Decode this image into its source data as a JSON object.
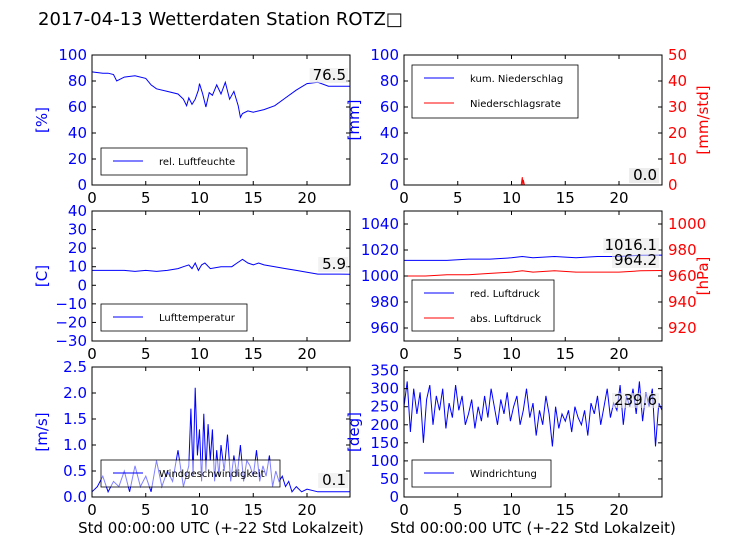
{
  "title": "2017-04-13 Wetterdaten Station ROTZ□",
  "colors": {
    "primary": "#0000ff",
    "secondary": "#ff0000",
    "light": "#8080ff",
    "axis": "#000000"
  },
  "chart_data": [
    {
      "type": "line",
      "id": "humidity",
      "ylabel": "[%]",
      "xlabel": "",
      "xlim": [
        0,
        24
      ],
      "ylim": [
        0,
        100
      ],
      "xticks": [
        "0",
        "5",
        "10",
        "15",
        "20"
      ],
      "yticks": [
        "0",
        "20",
        "40",
        "60",
        "80",
        "100"
      ],
      "legend": [
        "rel. Luftfeuchte"
      ],
      "legend_position": "lower-left",
      "annotations": [
        "76.5"
      ],
      "series": [
        {
          "name": "rel. Luftfeuchte",
          "color": "#0000ff",
          "x": [
            0,
            1,
            1.5,
            2,
            2.3,
            3,
            4,
            5,
            5.5,
            6,
            7,
            8,
            8.5,
            8.8,
            9,
            9.3,
            9.6,
            9.9,
            10,
            10.3,
            10.6,
            10.9,
            11.2,
            11.6,
            12,
            12.4,
            12.8,
            13.2,
            13.6,
            13.8,
            14,
            14.5,
            15,
            16,
            17,
            18,
            19,
            20,
            21,
            22,
            23,
            24
          ],
          "y": [
            87,
            86,
            86,
            85,
            80,
            83,
            84,
            82,
            77,
            74,
            72,
            70,
            66,
            61,
            67,
            62,
            66,
            73,
            78,
            70,
            60,
            71,
            69,
            77,
            70,
            79,
            66,
            72,
            61,
            52,
            55,
            57,
            56,
            58,
            61,
            67,
            73,
            78,
            79,
            76,
            76,
            76
          ]
        }
      ]
    },
    {
      "type": "line",
      "id": "precipitation",
      "ylabel": "[mm]",
      "ylabel2": "[mm/std]",
      "xlabel": "",
      "xlim": [
        0,
        24
      ],
      "ylim": [
        0,
        100
      ],
      "ylim2": [
        0,
        50
      ],
      "xticks": [
        "0",
        "5",
        "10",
        "15",
        "20"
      ],
      "yticks": [
        "0",
        "20",
        "40",
        "60",
        "80",
        "100"
      ],
      "yticks2": [
        "0",
        "10",
        "20",
        "30",
        "40",
        "50"
      ],
      "legend": [
        "kum. Niederschlag",
        "Niederschlagsrate"
      ],
      "legend_position": "upper-left",
      "annotations": [
        "0.0",
        "0.0"
      ],
      "series": [
        {
          "name": "kum. Niederschlag",
          "color": "#0000ff",
          "x": [
            0,
            24
          ],
          "y": [
            0,
            0
          ]
        },
        {
          "name": "Niederschlagsrate",
          "color": "#ff0000",
          "axis": "right",
          "x": [
            0,
            10.9,
            11.0,
            11.05,
            11.1,
            11.2,
            24
          ],
          "y": [
            0,
            0,
            3,
            0,
            2,
            0,
            0
          ]
        }
      ]
    },
    {
      "type": "line",
      "id": "temperature",
      "ylabel": "[C]",
      "xlabel": "",
      "xlim": [
        0,
        24
      ],
      "ylim": [
        -30,
        40
      ],
      "xticks": [
        "0",
        "5",
        "10",
        "15",
        "20"
      ],
      "yticks": [
        "−30",
        "−20",
        "−10",
        "0",
        "10",
        "20",
        "30",
        "40"
      ],
      "legend": [
        "Lufttemperatur"
      ],
      "legend_position": "lower-left",
      "annotations": [
        "5.9"
      ],
      "series": [
        {
          "name": "Lufttemperatur",
          "color": "#0000ff",
          "x": [
            0,
            1,
            2,
            3,
            4,
            5,
            6,
            7,
            8,
            8.5,
            9,
            9.3,
            9.6,
            9.9,
            10.2,
            10.5,
            11,
            12,
            13,
            13.5,
            14,
            14.5,
            15,
            15.5,
            16,
            17,
            18,
            19,
            20,
            21,
            22,
            23,
            24
          ],
          "y": [
            8,
            8,
            8,
            8,
            7.5,
            8,
            7.5,
            8,
            9,
            10,
            11,
            9,
            12,
            8,
            11,
            12,
            9,
            10,
            10,
            12,
            14,
            12,
            11,
            12,
            11,
            10,
            9,
            8,
            7,
            6,
            6,
            6,
            5.9
          ]
        }
      ]
    },
    {
      "type": "line",
      "id": "pressure",
      "ylabel": "",
      "ylabel2": "[hPa]",
      "xlabel": "",
      "xlim": [
        0,
        24
      ],
      "ylim": [
        950,
        1050
      ],
      "ylim2": [
        910,
        1010
      ],
      "xticks": [
        "0",
        "5",
        "10",
        "15",
        "20"
      ],
      "yticks": [
        "960",
        "980",
        "1000",
        "1020",
        "1040"
      ],
      "yticks2": [
        "920",
        "940",
        "960",
        "980",
        "1000"
      ],
      "legend": [
        "red. Luftdruck",
        "abs. Luftdruck"
      ],
      "legend_position": "lower-left",
      "annotations": [
        "1016.1",
        "964.2"
      ],
      "series": [
        {
          "name": "red. Luftdruck",
          "color": "#0000ff",
          "x": [
            0,
            2,
            4,
            6,
            8,
            10,
            11,
            12,
            14,
            16,
            18,
            20,
            22,
            24
          ],
          "y": [
            1012,
            1012,
            1012,
            1013,
            1013,
            1014,
            1015,
            1014,
            1015,
            1014,
            1015,
            1015,
            1016,
            1016.1
          ]
        },
        {
          "name": "abs. Luftdruck",
          "color": "#ff0000",
          "axis": "right",
          "x": [
            0,
            2,
            4,
            6,
            8,
            10,
            11,
            12,
            14,
            16,
            18,
            20,
            22,
            24
          ],
          "y": [
            960,
            960,
            961,
            961,
            962,
            963,
            964,
            963,
            964,
            963,
            963,
            963,
            964,
            964.2
          ]
        }
      ]
    },
    {
      "type": "line",
      "id": "wind-speed",
      "ylabel": "[m/s]",
      "xlabel": "Std 00:00:00 UTC (+-22 Std Lokalzeit)",
      "xlim": [
        0,
        24
      ],
      "ylim": [
        0,
        2.5
      ],
      "xticks": [
        "0",
        "5",
        "10",
        "15",
        "20"
      ],
      "yticks": [
        "0.0",
        "0.5",
        "1.0",
        "1.5",
        "2.0",
        "2.5"
      ],
      "legend": [
        "Windgeschwindigkeit"
      ],
      "legend_position": "lower-left",
      "annotations": [
        "0.1"
      ],
      "series": [
        {
          "name": "Windgeschwindigkeit",
          "color": "#0000ff",
          "x": [
            0,
            0.5,
            1,
            1.5,
            2,
            2.5,
            3,
            3.5,
            4,
            4.5,
            5,
            5.5,
            6,
            6.5,
            7,
            7.5,
            8,
            8.5,
            9,
            9.2,
            9.4,
            9.6,
            9.8,
            10,
            10.2,
            10.4,
            10.6,
            10.8,
            11,
            11.2,
            11.4,
            11.6,
            11.8,
            12,
            12.3,
            12.6,
            12.9,
            13.2,
            13.5,
            13.8,
            14.1,
            14.4,
            14.7,
            15,
            15.3,
            15.6,
            15.9,
            16.2,
            16.5,
            16.8,
            17.1,
            17.4,
            17.7,
            18,
            18.3,
            18.6,
            19,
            19.5,
            20,
            21,
            22,
            23,
            24
          ],
          "y": [
            0.1,
            0.2,
            0.4,
            0.1,
            0.3,
            0.2,
            0.5,
            0.1,
            0.6,
            0.2,
            0.4,
            0.1,
            0.7,
            0.2,
            0.5,
            0.3,
            0.9,
            0.2,
            0.6,
            1.7,
            0.4,
            2.1,
            0.8,
            1.3,
            0.3,
            1.6,
            0.5,
            1.4,
            0.7,
            1.3,
            0.3,
            0.9,
            0.4,
            1.0,
            0.5,
            1.2,
            0.3,
            0.8,
            0.4,
            1.0,
            0.3,
            0.7,
            0.6,
            0.4,
            0.9,
            0.3,
            0.6,
            0.4,
            0.8,
            0.2,
            0.5,
            0.3,
            0.4,
            0.2,
            0.3,
            0.1,
            0.2,
            0.1,
            0.15,
            0.1,
            0.1,
            0.1,
            0.1
          ]
        }
      ]
    },
    {
      "type": "line",
      "id": "wind-direction",
      "ylabel": "[deg]",
      "xlabel": "Std 00:00:00 UTC (+-22 Std Lokalzeit)",
      "xlim": [
        0,
        24
      ],
      "ylim": [
        0,
        360
      ],
      "xticks": [
        "0",
        "5",
        "10",
        "15",
        "20"
      ],
      "yticks": [
        "0",
        "50",
        "100",
        "150",
        "200",
        "250",
        "300",
        "350"
      ],
      "legend": [
        "Windrichtung"
      ],
      "legend_position": "lower-left",
      "annotations": [
        "239.6"
      ],
      "series": [
        {
          "name": "Windrichtung",
          "color": "#0000ff",
          "x": [
            0,
            0.3,
            0.6,
            0.9,
            1.2,
            1.5,
            1.8,
            2.1,
            2.4,
            2.7,
            3,
            3.3,
            3.6,
            3.9,
            4.2,
            4.5,
            4.8,
            5.1,
            5.4,
            5.7,
            6,
            6.3,
            6.6,
            6.9,
            7.2,
            7.5,
            7.8,
            8.1,
            8.4,
            8.7,
            9,
            9.3,
            9.6,
            9.9,
            10.2,
            10.5,
            10.8,
            11.1,
            11.4,
            11.7,
            12,
            12.3,
            12.6,
            12.9,
            13.2,
            13.5,
            13.8,
            14.1,
            14.4,
            14.7,
            15,
            15.3,
            15.6,
            15.9,
            16.2,
            16.5,
            16.8,
            17.1,
            17.4,
            17.7,
            18,
            18.3,
            18.6,
            18.9,
            19.2,
            19.5,
            19.8,
            20.1,
            20.4,
            20.7,
            21,
            21.3,
            21.6,
            21.9,
            22.2,
            22.5,
            22.8,
            23.1,
            23.4,
            23.7,
            24
          ],
          "y": [
            250,
            320,
            180,
            300,
            230,
            290,
            150,
            270,
            310,
            200,
            280,
            240,
            300,
            190,
            260,
            220,
            310,
            240,
            280,
            200,
            230,
            270,
            190,
            250,
            210,
            280,
            220,
            300,
            250,
            200,
            270,
            230,
            290,
            210,
            250,
            280,
            200,
            240,
            300,
            220,
            260,
            170,
            240,
            200,
            280,
            230,
            140,
            250,
            190,
            230,
            210,
            240,
            180,
            250,
            220,
            200,
            240,
            170,
            260,
            230,
            280,
            200,
            250,
            300,
            220,
            260,
            240,
            310,
            200,
            280,
            250,
            300,
            230,
            320,
            210,
            290,
            250,
            300,
            140,
            260,
            240
          ]
        }
      ]
    }
  ]
}
